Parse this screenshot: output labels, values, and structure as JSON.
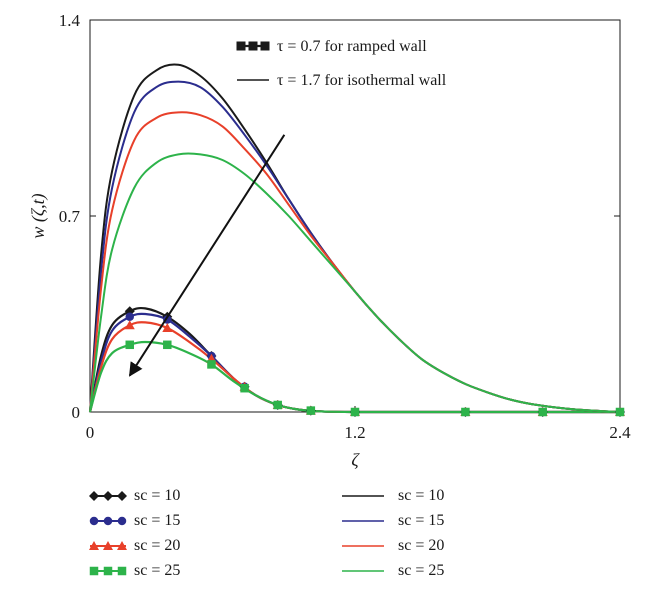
{
  "chart_data": {
    "type": "line",
    "xlabel": "ζ",
    "ylabel": "w (ζ,t)",
    "xlim": [
      0,
      2.4
    ],
    "ylim": [
      0,
      1.4
    ],
    "xticks": [
      "0",
      "1.2",
      "2.4"
    ],
    "yticks": [
      "0",
      "0.7",
      "1.4"
    ],
    "inner_legend": [
      {
        "label": "τ = 0.7 for ramped wall",
        "style": "markers"
      },
      {
        "label": "τ = 1.7 for isothermal wall",
        "style": "line"
      }
    ],
    "series": [
      {
        "name": "sc = 10",
        "group": "ramped",
        "marker": "diamond",
        "color": "#1a1a1a",
        "x": [
          0,
          0.05,
          0.1,
          0.18,
          0.25,
          0.35,
          0.45,
          0.55,
          0.65,
          0.75,
          0.85,
          0.95,
          1.05,
          1.2,
          1.5,
          2.0,
          2.4
        ],
        "y": [
          0,
          0.2,
          0.31,
          0.36,
          0.37,
          0.34,
          0.28,
          0.2,
          0.12,
          0.06,
          0.025,
          0.008,
          0.002,
          0,
          0,
          0,
          0
        ]
      },
      {
        "name": "sc = 15",
        "group": "ramped",
        "marker": "circle",
        "color": "#2b2d8e",
        "x": [
          0,
          0.05,
          0.1,
          0.18,
          0.25,
          0.35,
          0.45,
          0.55,
          0.65,
          0.75,
          0.85,
          0.95,
          1.05,
          1.2,
          1.5,
          2.0,
          2.4
        ],
        "y": [
          0,
          0.18,
          0.29,
          0.34,
          0.35,
          0.33,
          0.27,
          0.2,
          0.12,
          0.06,
          0.025,
          0.008,
          0.002,
          0,
          0,
          0,
          0
        ]
      },
      {
        "name": "sc = 20",
        "group": "ramped",
        "marker": "triangle",
        "color": "#e8402a",
        "x": [
          0,
          0.05,
          0.1,
          0.18,
          0.25,
          0.35,
          0.45,
          0.55,
          0.65,
          0.75,
          0.85,
          0.95,
          1.05,
          1.2,
          1.5,
          2.0,
          2.4
        ],
        "y": [
          0,
          0.16,
          0.26,
          0.31,
          0.32,
          0.3,
          0.25,
          0.19,
          0.12,
          0.06,
          0.025,
          0.008,
          0.002,
          0,
          0,
          0,
          0
        ]
      },
      {
        "name": "sc = 25",
        "group": "ramped",
        "marker": "square",
        "color": "#2db34a",
        "x": [
          0,
          0.05,
          0.1,
          0.18,
          0.25,
          0.35,
          0.45,
          0.55,
          0.65,
          0.75,
          0.85,
          0.95,
          1.05,
          1.2,
          1.5,
          2.0,
          2.4
        ],
        "y": [
          0,
          0.14,
          0.21,
          0.24,
          0.25,
          0.24,
          0.21,
          0.17,
          0.11,
          0.06,
          0.025,
          0.008,
          0.002,
          0,
          0,
          0,
          0
        ]
      },
      {
        "name": "sc = 10",
        "group": "isothermal",
        "marker": "none",
        "color": "#1a1a1a",
        "x": [
          0,
          0.05,
          0.1,
          0.2,
          0.3,
          0.4,
          0.5,
          0.6,
          0.7,
          0.8,
          0.9,
          1.0,
          1.1,
          1.2,
          1.3,
          1.4,
          1.5,
          1.6,
          1.7,
          1.8,
          1.9,
          2.0,
          2.1,
          2.2,
          2.3,
          2.4
        ],
        "y": [
          0,
          0.56,
          0.86,
          1.13,
          1.22,
          1.24,
          1.2,
          1.12,
          1.01,
          0.89,
          0.76,
          0.64,
          0.53,
          0.43,
          0.34,
          0.26,
          0.19,
          0.14,
          0.1,
          0.07,
          0.045,
          0.028,
          0.017,
          0.009,
          0.004,
          0
        ]
      },
      {
        "name": "sc = 15",
        "group": "isothermal",
        "marker": "none",
        "color": "#2b2d8e",
        "x": [
          0,
          0.05,
          0.1,
          0.2,
          0.3,
          0.4,
          0.5,
          0.6,
          0.7,
          0.8,
          0.9,
          1.0,
          1.1,
          1.2,
          1.3,
          1.4,
          1.5,
          1.6,
          1.7,
          1.8,
          1.9,
          2.0,
          2.1,
          2.2,
          2.3,
          2.4
        ],
        "y": [
          0,
          0.5,
          0.8,
          1.07,
          1.16,
          1.18,
          1.16,
          1.09,
          0.99,
          0.88,
          0.76,
          0.64,
          0.53,
          0.43,
          0.34,
          0.26,
          0.19,
          0.14,
          0.1,
          0.07,
          0.045,
          0.028,
          0.017,
          0.009,
          0.004,
          0
        ]
      },
      {
        "name": "sc = 20",
        "group": "isothermal",
        "marker": "none",
        "color": "#e8402a",
        "x": [
          0,
          0.05,
          0.1,
          0.2,
          0.3,
          0.4,
          0.5,
          0.6,
          0.7,
          0.8,
          0.9,
          1.0,
          1.1,
          1.2,
          1.3,
          1.4,
          1.5,
          1.6,
          1.7,
          1.8,
          1.9,
          2.0,
          2.1,
          2.2,
          2.3,
          2.4
        ],
        "y": [
          0,
          0.44,
          0.72,
          0.97,
          1.05,
          1.07,
          1.06,
          1.02,
          0.94,
          0.85,
          0.74,
          0.63,
          0.53,
          0.43,
          0.34,
          0.26,
          0.19,
          0.14,
          0.1,
          0.07,
          0.045,
          0.028,
          0.017,
          0.009,
          0.004,
          0
        ]
      },
      {
        "name": "sc = 25",
        "group": "isothermal",
        "marker": "none",
        "color": "#2db34a",
        "x": [
          0,
          0.05,
          0.1,
          0.2,
          0.3,
          0.4,
          0.5,
          0.6,
          0.7,
          0.8,
          0.9,
          1.0,
          1.1,
          1.2,
          1.3,
          1.4,
          1.5,
          1.6,
          1.7,
          1.8,
          1.9,
          2.0,
          2.1,
          2.2,
          2.3,
          2.4
        ],
        "y": [
          0,
          0.34,
          0.58,
          0.8,
          0.89,
          0.92,
          0.92,
          0.9,
          0.85,
          0.78,
          0.7,
          0.61,
          0.52,
          0.43,
          0.34,
          0.26,
          0.19,
          0.14,
          0.1,
          0.07,
          0.045,
          0.028,
          0.017,
          0.009,
          0.004,
          0
        ]
      }
    ],
    "marker_x": [
      0.18,
      0.35,
      0.55,
      0.7,
      0.85,
      1.0,
      1.2,
      1.7,
      2.05,
      2.4
    ],
    "arrow": {
      "from": [
        0.88,
        0.99
      ],
      "to": [
        0.18,
        0.13
      ]
    },
    "grid": false
  },
  "bottom_legend": {
    "left": [
      {
        "label": "sc = 10",
        "marker": "diamond",
        "color": "#1a1a1a"
      },
      {
        "label": "sc = 15",
        "marker": "circle",
        "color": "#2b2d8e"
      },
      {
        "label": "sc = 20",
        "marker": "triangle",
        "color": "#e8402a"
      },
      {
        "label": "sc = 25",
        "marker": "square",
        "color": "#2db34a"
      }
    ],
    "right": [
      {
        "label": "sc = 10",
        "color": "#1a1a1a"
      },
      {
        "label": "sc = 15",
        "color": "#2b2d8e"
      },
      {
        "label": "sc = 20",
        "color": "#e8402a"
      },
      {
        "label": "sc = 25",
        "color": "#2db34a"
      }
    ]
  }
}
